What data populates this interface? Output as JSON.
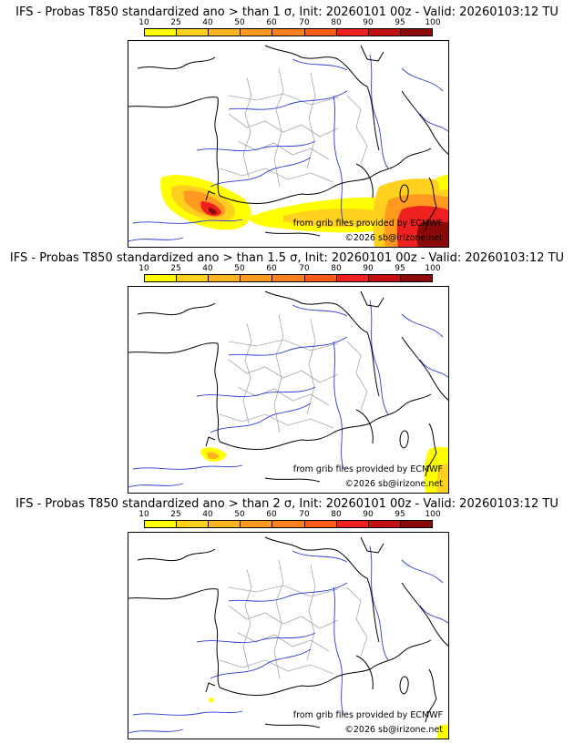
{
  "scale": {
    "labels": [
      "10",
      "25",
      "40",
      "50",
      "60",
      "70",
      "80",
      "90",
      "95",
      "100"
    ],
    "colors": [
      "#ffff00",
      "#ffd11f",
      "#ffb31f",
      "#ff991f",
      "#ff801f",
      "#ff5c1a",
      "#ee2020",
      "#c41010",
      "#8a0a0a",
      "#4d0505"
    ]
  },
  "panels": [
    {
      "title": "IFS - Probas T850  standardized ano > than 1 σ, Init: 20260101 00z - Valid: 20260103:12 TU",
      "credit_source": "from grib files provided by ECMWF",
      "credit_copyright": "©2026 sb@irizone.net"
    },
    {
      "title": "IFS - Probas T850  standardized ano > than 1.5 σ, Init: 20260101 00z - Valid: 20260103:12 TU",
      "credit_source": "from grib files provided by ECMWF",
      "credit_copyright": "©2026 sb@irizone.net"
    },
    {
      "title": "IFS - Probas T850  standardized ano > than 2 σ, Init: 20260101 00z - Valid: 20260103:12 TU",
      "credit_source": "from grib files provided by ECMWF",
      "credit_copyright": "©2026 sb@irizone.net"
    }
  ]
}
